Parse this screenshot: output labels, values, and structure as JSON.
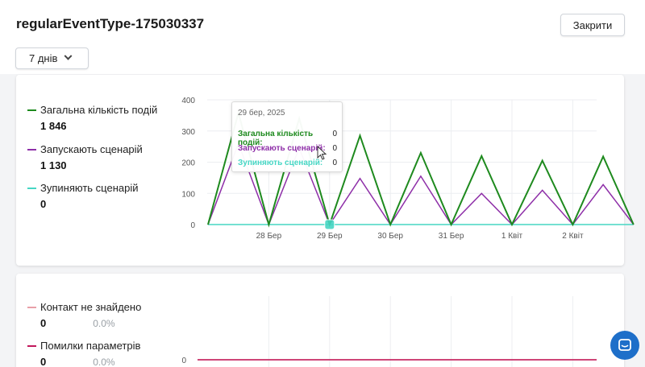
{
  "header": {
    "title": "regularEventType-175030337",
    "close_label": "Закрити"
  },
  "period": {
    "selected": "7 днів"
  },
  "legend1": [
    {
      "label": "Загальна кількість подій",
      "value": "1 846",
      "color": "#1e8a1e"
    },
    {
      "label": "Запускають сценарій",
      "value": "1 130",
      "color": "#8e2fa8"
    },
    {
      "label": "Зупиняють сценарій",
      "value": "0",
      "color": "#46d6c4"
    }
  ],
  "legend2": [
    {
      "label": "Контакт не знайдено",
      "value": "0",
      "pct": "0.0%",
      "color": "#e8a0a8"
    },
    {
      "label": "Помилки параметрів",
      "value": "0",
      "pct": "0.0%",
      "color": "#c2185b"
    }
  ],
  "tooltip": {
    "title": "29 бер, 2025",
    "rows": [
      {
        "label": "Загальна кількість подій:",
        "value": "0",
        "color": "#1e8a1e"
      },
      {
        "label": "Запускають сценарій:",
        "value": "0",
        "color": "#8e2fa8"
      },
      {
        "label": "Зупиняють сценарій:",
        "value": "0",
        "color": "#46d6c4"
      }
    ]
  },
  "chart_data": [
    {
      "type": "line",
      "x_ticks": [
        "28 Бер",
        "29 Бер",
        "30 Бер",
        "31 Бер",
        "1 Квіт",
        "2 Квіт"
      ],
      "y_ticks": [
        "0",
        "100",
        "200",
        "300",
        "400"
      ],
      "ylim": [
        0,
        400
      ],
      "peaks_x": [
        0.5,
        1.5,
        2.5,
        3.5,
        4.5,
        5.5,
        6.5
      ],
      "series": [
        {
          "name": "Загальна кількість подій",
          "color": "#1e8a1e",
          "peak_values": [
            358,
            340,
            285,
            230,
            220,
            205,
            218
          ]
        },
        {
          "name": "Запускають сценарій",
          "color": "#8e2fa8",
          "peak_values": [
            260,
            245,
            148,
            155,
            100,
            110,
            128
          ]
        },
        {
          "name": "Зупиняють сценарій",
          "color": "#46d6c4",
          "peak_values": [
            0,
            0,
            0,
            0,
            0,
            0,
            0
          ]
        }
      ]
    },
    {
      "type": "line",
      "y_ticks": [
        "0"
      ],
      "series": [
        {
          "name": "Контакт не знайдено",
          "color": "#e8a0a8",
          "values": [
            0,
            0,
            0,
            0,
            0,
            0,
            0
          ]
        },
        {
          "name": "Помилки параметрів",
          "color": "#c2185b",
          "values": [
            0,
            0,
            0,
            0,
            0,
            0,
            0
          ]
        }
      ]
    }
  ]
}
